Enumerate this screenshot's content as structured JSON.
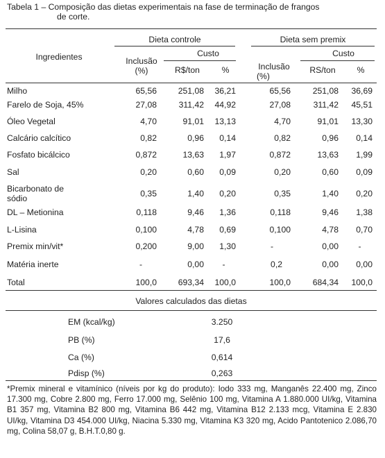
{
  "caption": {
    "line1": "Tabela 1 – Composição das dietas experimentais na fase de terminação de frangos",
    "line2": "de corte."
  },
  "header": {
    "ingredients": "Ingredientes",
    "group1": "Dieta controle",
    "group2": "Dieta sem premix",
    "inclusao_1": "Inclusão",
    "inclusao_2": "(%)",
    "custo": "Custo",
    "rs_ton_g1": "R$/ton",
    "rs_ton_g2": "RS/ton",
    "pct": "%"
  },
  "rows": [
    {
      "name": "Milho",
      "c_inc": "65,56",
      "c_cost": "251,08",
      "c_pct": "36,21",
      "s_inc": "65,56",
      "s_cost": "251,08",
      "s_pct": "36,69"
    },
    {
      "name": "Farelo de Soja, 45%",
      "c_inc": "27,08",
      "c_cost": "311,42",
      "c_pct": "44,92",
      "s_inc": "27,08",
      "s_cost": "311,42",
      "s_pct": "45,51"
    },
    {
      "name": "Óleo Vegetal",
      "c_inc": "4,70",
      "c_cost": "91,01",
      "c_pct": "13,13",
      "s_inc": "4,70",
      "s_cost": "91,01",
      "s_pct": "13,30"
    },
    {
      "name": "Calcário calcítico",
      "c_inc": "0,82",
      "c_cost": "0,96",
      "c_pct": "0,14",
      "s_inc": "0,82",
      "s_cost": "0,96",
      "s_pct": "0,14"
    },
    {
      "name": "Fosfato bicálcico",
      "c_inc": "0,872",
      "c_cost": "13,63",
      "c_pct": "1,97",
      "s_inc": "0,872",
      "s_cost": "13,63",
      "s_pct": "1,99"
    },
    {
      "name": "Sal",
      "c_inc": "0,20",
      "c_cost": "0,60",
      "c_pct": "0,09",
      "s_inc": "0,20",
      "s_cost": "0,60",
      "s_pct": "0,09"
    },
    {
      "name": "Bicarbonato de",
      "name2": "sódio",
      "c_inc": "0,35",
      "c_cost": "1,40",
      "c_pct": "0,20",
      "s_inc": "0,35",
      "s_cost": "1,40",
      "s_pct": "0,20"
    },
    {
      "name": "DL – Metionina",
      "c_inc": "0,118",
      "c_cost": "9,46",
      "c_pct": "1,36",
      "s_inc": "0,118",
      "s_cost": "9,46",
      "s_pct": "1,38"
    },
    {
      "name": "L-Lisina",
      "c_inc": "0,100",
      "c_cost": "4,78",
      "c_pct": "0,69",
      "s_inc": "0,100",
      "s_cost": "4,78",
      "s_pct": "0,70"
    },
    {
      "name": "Premix min/vit*",
      "c_inc": "0,200",
      "c_cost": "9,00",
      "c_pct": "1,30",
      "s_inc": "-",
      "s_cost": "0,00",
      "s_pct": "-"
    },
    {
      "name": "Matéria inerte",
      "c_inc": "-",
      "c_cost": "0,00",
      "c_pct": "-",
      "s_inc": "0,2",
      "s_cost": "0,00",
      "s_pct": "0,00"
    },
    {
      "name": "Total",
      "c_inc": "100,0",
      "c_cost": "693,34",
      "c_pct": "100,0",
      "s_inc": "100,0",
      "s_cost": "684,34",
      "s_pct": "100,0"
    }
  ],
  "calc": {
    "title": "Valores calculados das dietas",
    "rows": [
      {
        "label": "EM (kcal/kg)",
        "value": "3.250"
      },
      {
        "label": "PB (%)",
        "value": "17,6"
      },
      {
        "label": "Ca (%)",
        "value": "0,614"
      },
      {
        "label": "Pdisp (%)",
        "value": "0,263"
      }
    ]
  },
  "footnote": "*Premix mineral e vitamínico (níveis por kg do produto): Iodo 333 mg, Manganês 22.400 mg, Zinco 17.300 mg, Cobre 2.800 mg, Ferro 17.000 mg, Selênio 100 mg, Vitamina A 1.880.000 UI/kg, Vitamina B1 357 mg, Vitamina B2 800 mg, Vitamina B6 442 mg, Vitamina B12 2.133 mcg, Vitamina E 2.830 UI/kg, Vitamina D3 454.000 UI/kg, Niacina 5.330 mg, Vitamina K3 320 mg, Acido Pantotenico 2.086,70 mg, Colina 58,07 g, B.H.T.0,80 g."
}
